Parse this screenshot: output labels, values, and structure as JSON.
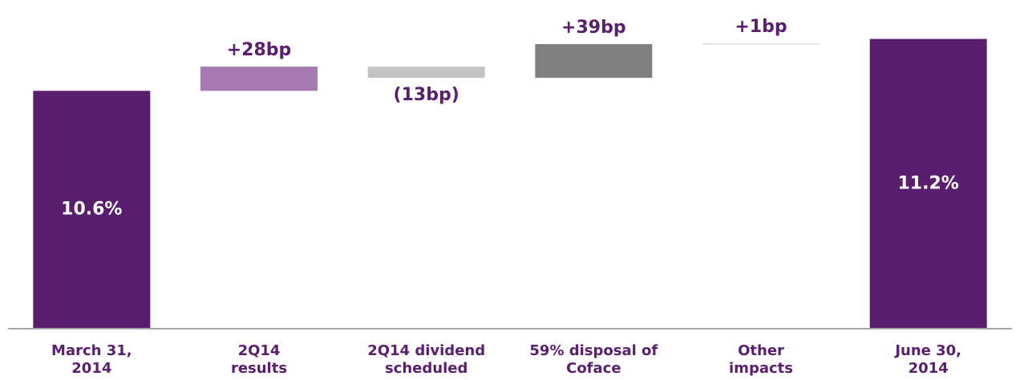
{
  "chart_data": {
    "type": "waterfall",
    "categories": [
      "March 31,\n2014",
      "2Q14\nresults",
      "2Q14 dividend\nscheduled",
      "59% disposal of\nCoface",
      "Other\nimpacts",
      "June 30,\n2014"
    ],
    "values": [
      10.6,
      0.28,
      -0.13,
      0.39,
      0.01,
      11.2
    ],
    "value_labels": [
      "10.6%",
      "+28bp",
      "(13bp)",
      "+39bp",
      "+1bp",
      "11.2%"
    ],
    "colors": [
      "#5a1e6e",
      "#a87ab2",
      "#c3c3c3",
      "#808080",
      "#d9d9d9",
      "#5a1e6e"
    ],
    "ylim": [
      7.85,
      11.65
    ]
  }
}
